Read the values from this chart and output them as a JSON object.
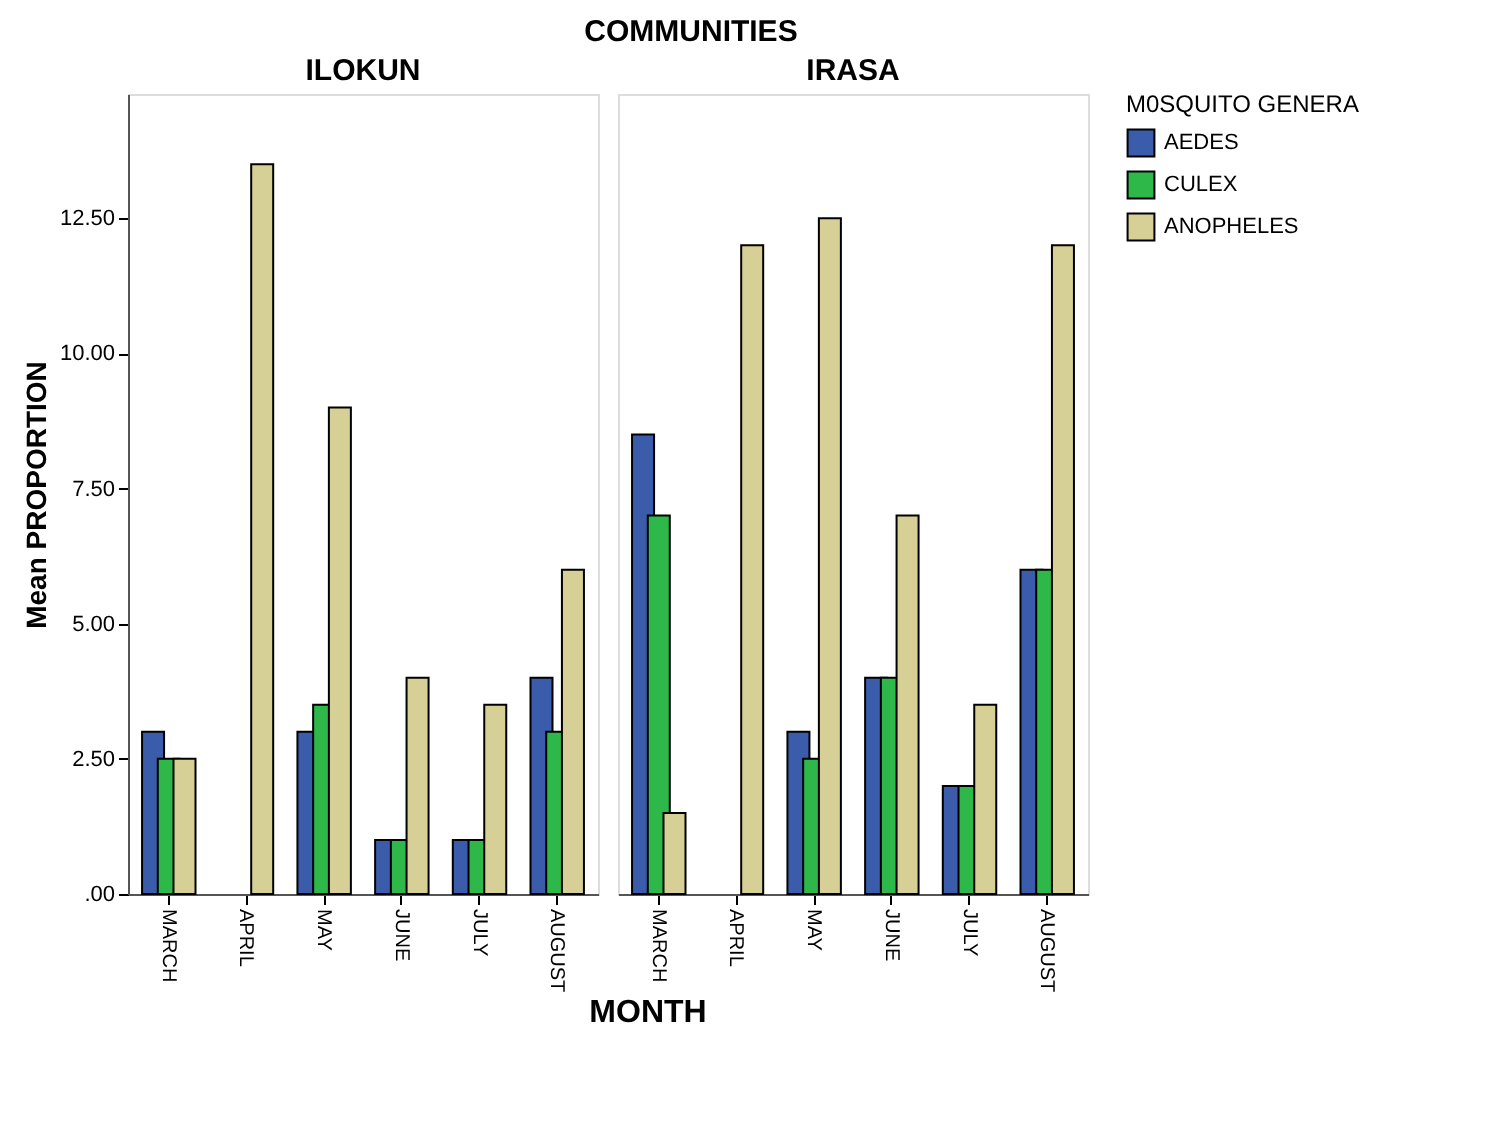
{
  "chart_data": [
    {
      "type": "bar",
      "title": "ILOKUN",
      "annotations": [
        "COMMUNITIES"
      ],
      "xlabel": "MONTH",
      "ylabel": "Mean PROPORTION",
      "categories": [
        "MARCH",
        "APRIL",
        "MAY",
        "JUNE",
        "JULY",
        "AUGUST"
      ],
      "series": [
        {
          "name": "AEDES",
          "color": "#3b5bab",
          "values": [
            3,
            0,
            3,
            1,
            1,
            4
          ]
        },
        {
          "name": "CULEX",
          "color": "#2fb84a",
          "values": [
            2.5,
            0,
            3.5,
            1,
            1,
            3
          ]
        },
        {
          "name": "ANOPHELES",
          "color": "#d6d096",
          "values": [
            2.5,
            13.5,
            9,
            4,
            3.5,
            6
          ]
        }
      ],
      "ylim": [
        0,
        14.8
      ],
      "yticks": [
        {
          "value": 0,
          "label": ".00"
        },
        {
          "value": 2.5,
          "label": "2.50"
        },
        {
          "value": 5,
          "label": "5.00"
        },
        {
          "value": 7.5,
          "label": "7.50"
        },
        {
          "value": 10,
          "label": "10.00"
        },
        {
          "value": 12.5,
          "label": "12.50"
        }
      ],
      "grid": false,
      "legend": "top right",
      "legend_title": "M0SQUITO GENERA"
    },
    {
      "type": "bar",
      "title": "IRASA",
      "categories": [
        "MARCH",
        "APRIL",
        "MAY",
        "JUNE",
        "JULY",
        "AUGUST"
      ],
      "series": [
        {
          "name": "AEDES",
          "color": "#3b5bab",
          "values": [
            8.5,
            0,
            3,
            4,
            2,
            6
          ]
        },
        {
          "name": "CULEX",
          "color": "#2fb84a",
          "values": [
            7,
            0,
            2.5,
            4,
            2,
            6
          ]
        },
        {
          "name": "ANOPHELES",
          "color": "#d6d096",
          "values": [
            1.5,
            12,
            12.5,
            7,
            3.5,
            12
          ]
        }
      ],
      "ylim": [
        0,
        14.8
      ],
      "tick_labels": "x",
      "grid": false,
      "legend": "top right"
    }
  ]
}
